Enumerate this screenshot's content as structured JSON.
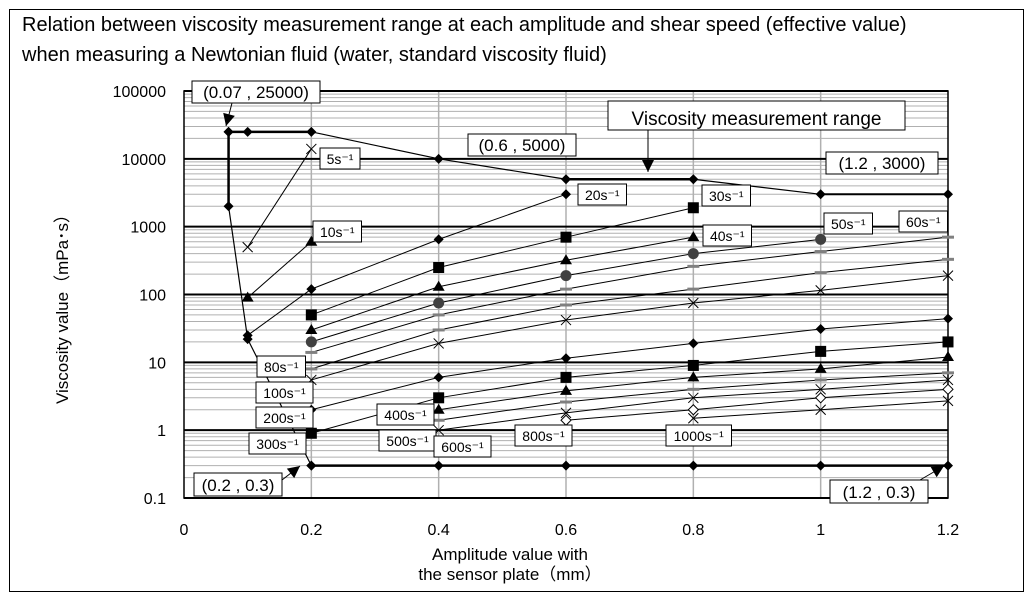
{
  "chart_data": {
    "type": "line",
    "title": [
      "Relation between viscosity measurement range at each amplitude and shear speed (effective value)",
      "when measuring a Newtonian fluid (water, standard viscosity fluid)"
    ],
    "xlabel": [
      "Amplitude value with",
      "the sensor plate（mm）"
    ],
    "ylabel": "Viscosity value（mPa･s）",
    "x_scale": "linear",
    "y_scale": "log",
    "xlim": [
      0,
      1.2
    ],
    "ylim": [
      0.1,
      100000
    ],
    "x_ticks": [
      "0",
      "0.2",
      "0.4",
      "0.6",
      "0.8",
      "1",
      "1.2"
    ],
    "y_ticks": [
      "0.1",
      "1",
      "10",
      "100",
      "1000",
      "10000",
      "100000"
    ],
    "grid": true,
    "range_boundary": {
      "name": "Viscosity measurement range",
      "upper": [
        [
          0.07,
          25000
        ],
        [
          0.1,
          25000
        ],
        [
          0.2,
          25000
        ],
        [
          0.4,
          10000
        ],
        [
          0.6,
          5000
        ],
        [
          0.8,
          5000
        ],
        [
          1.0,
          3000
        ],
        [
          1.2,
          3000
        ]
      ],
      "left": [
        [
          0.07,
          25000
        ],
        [
          0.07,
          2000
        ],
        [
          0.1,
          22
        ],
        [
          0.2,
          0.3
        ]
      ],
      "lower": [
        [
          0.2,
          0.3
        ],
        [
          0.4,
          0.3
        ],
        [
          0.6,
          0.3
        ],
        [
          0.8,
          0.3
        ],
        [
          1.0,
          0.3
        ],
        [
          1.2,
          0.3
        ]
      ],
      "marker": "diamond"
    },
    "annotations": [
      "(0.07 , 25000)",
      "(0.6 , 5000)",
      "(1.2 , 3000)",
      "(0.2 , 0.3)",
      "(1.2 , 0.3)",
      "Viscosity measurement range"
    ],
    "series": [
      {
        "name": "5s⁻¹",
        "marker": "x",
        "points": [
          [
            0.1,
            500
          ],
          [
            0.2,
            14000
          ]
        ]
      },
      {
        "name": "10s⁻¹",
        "marker": "triangle",
        "points": [
          [
            0.1,
            90
          ],
          [
            0.2,
            600
          ]
        ]
      },
      {
        "name": "20s⁻¹",
        "marker": "diamond",
        "points": [
          [
            0.1,
            25
          ],
          [
            0.2,
            120
          ],
          [
            0.4,
            650
          ],
          [
            0.6,
            3000
          ]
        ]
      },
      {
        "name": "30s⁻¹",
        "marker": "square",
        "points": [
          [
            0.2,
            50
          ],
          [
            0.4,
            250
          ],
          [
            0.6,
            700
          ],
          [
            0.8,
            1900
          ]
        ]
      },
      {
        "name": "40s⁻¹",
        "marker": "triangle",
        "points": [
          [
            0.2,
            30
          ],
          [
            0.4,
            130
          ],
          [
            0.6,
            320
          ],
          [
            0.8,
            700
          ]
        ]
      },
      {
        "name": "50s⁻¹",
        "marker": "circle",
        "points": [
          [
            0.2,
            20
          ],
          [
            0.4,
            75
          ],
          [
            0.6,
            190
          ],
          [
            0.8,
            400
          ],
          [
            1.0,
            650
          ]
        ]
      },
      {
        "name": "60s⁻¹",
        "marker": "dash",
        "points": [
          [
            0.2,
            14
          ],
          [
            0.4,
            50
          ],
          [
            0.6,
            120
          ],
          [
            0.8,
            260
          ],
          [
            1.0,
            430
          ],
          [
            1.2,
            700
          ]
        ]
      },
      {
        "name": "80s⁻¹",
        "marker": "dash",
        "points": [
          [
            0.2,
            8
          ],
          [
            0.4,
            30
          ],
          [
            0.6,
            70
          ],
          [
            0.8,
            120
          ],
          [
            1.0,
            210
          ],
          [
            1.2,
            330
          ]
        ]
      },
      {
        "name": "100s⁻¹",
        "marker": "x",
        "points": [
          [
            0.2,
            5.5
          ],
          [
            0.4,
            19
          ],
          [
            0.6,
            42
          ],
          [
            0.8,
            75
          ],
          [
            1.0,
            115
          ],
          [
            1.2,
            190
          ]
        ]
      },
      {
        "name": "200s⁻¹",
        "marker": "diamond",
        "points": [
          [
            0.2,
            2
          ],
          [
            0.4,
            6
          ],
          [
            0.6,
            11.5
          ],
          [
            0.8,
            19
          ],
          [
            1.0,
            31
          ],
          [
            1.2,
            44
          ]
        ]
      },
      {
        "name": "300s⁻¹",
        "marker": "square",
        "points": [
          [
            0.2,
            0.9
          ],
          [
            0.4,
            3
          ],
          [
            0.6,
            6
          ],
          [
            0.8,
            9
          ],
          [
            1.0,
            14.5
          ],
          [
            1.2,
            20
          ]
        ]
      },
      {
        "name": "400s⁻¹",
        "marker": "triangle",
        "points": [
          [
            0.4,
            2
          ],
          [
            0.6,
            3.8
          ],
          [
            0.8,
            6
          ],
          [
            1.0,
            8
          ],
          [
            1.2,
            12
          ]
        ]
      },
      {
        "name": "500s⁻¹",
        "marker": "dash",
        "points": [
          [
            0.4,
            1.4
          ],
          [
            0.6,
            2.6
          ],
          [
            0.8,
            4
          ],
          [
            1.0,
            5.5
          ],
          [
            1.2,
            7
          ]
        ]
      },
      {
        "name": "600s⁻¹",
        "marker": "x",
        "points": [
          [
            0.4,
            1
          ],
          [
            0.6,
            1.8
          ],
          [
            0.8,
            3
          ],
          [
            1.0,
            4
          ],
          [
            1.2,
            5.5
          ]
        ]
      },
      {
        "name": "800s⁻¹",
        "marker": "diamond-open",
        "points": [
          [
            0.6,
            1.4
          ],
          [
            0.8,
            2
          ],
          [
            1.0,
            3
          ],
          [
            1.2,
            4
          ]
        ]
      },
      {
        "name": "1000s⁻¹",
        "marker": "x",
        "points": [
          [
            0.8,
            1.5
          ],
          [
            1.0,
            2
          ],
          [
            1.2,
            2.7
          ]
        ]
      }
    ],
    "colors": {
      "line": "#000000",
      "grid_minor": "#b0b0b0",
      "grid_major": "#000000",
      "circle_marker": "#404040",
      "dash_marker": "#808080"
    }
  }
}
